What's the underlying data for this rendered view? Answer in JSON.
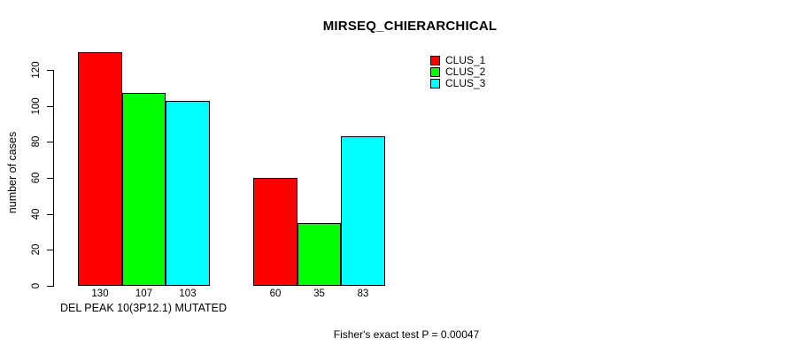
{
  "chart_data": {
    "type": "bar",
    "title": "MIRSEQ_CHIERARCHICAL",
    "ylabel": "number of cases",
    "xlabel": "DEL PEAK 10(3P12.1) MUTATED",
    "annotation": "Fisher's exact test P = 0.00047",
    "ylim": [
      0,
      130
    ],
    "yticks": [
      0,
      20,
      40,
      60,
      80,
      100,
      120
    ],
    "grid": false,
    "legend_position": "top-right",
    "groups": [
      "group-1",
      "group-2"
    ],
    "series": [
      {
        "name": "CLUS_1",
        "color": "#ff0000",
        "values": [
          130,
          60
        ]
      },
      {
        "name": "CLUS_2",
        "color": "#00ff00",
        "values": [
          107,
          35
        ]
      },
      {
        "name": "CLUS_3",
        "color": "#00ffff",
        "values": [
          103,
          83
        ]
      }
    ],
    "bar_value_labels": [
      [
        "130",
        "107",
        "103"
      ],
      [
        "60",
        "35",
        "83"
      ]
    ]
  }
}
